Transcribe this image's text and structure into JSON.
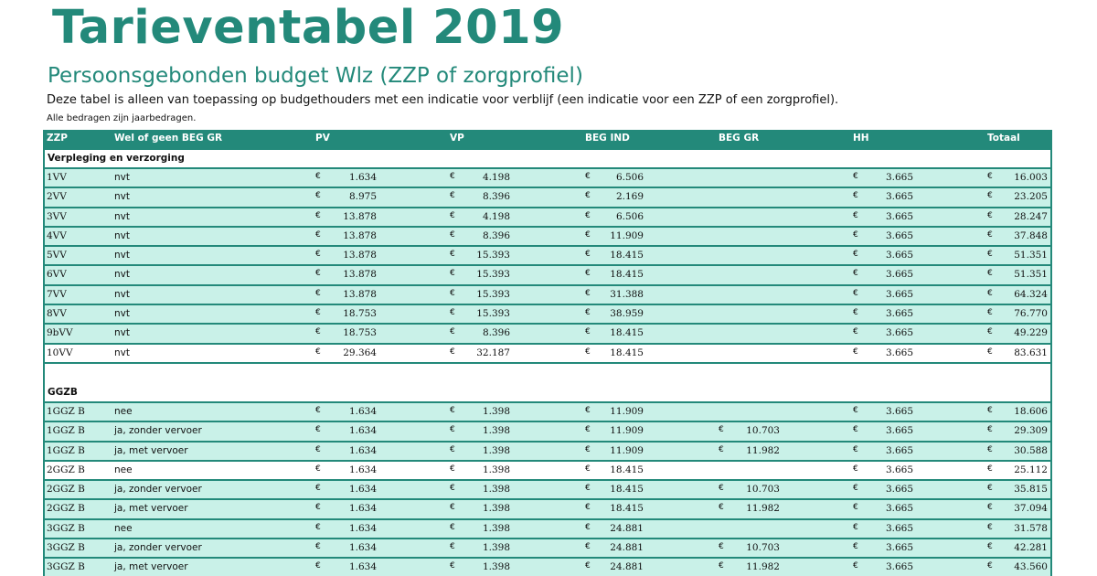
{
  "title": "Tarieventabel 2019",
  "subtitle": "Persoonsgebonden budget Wlz (ZZP of zorgprofiel)",
  "intro": "Deze tabel is alleen van toepassing op budgethouders met een indicatie voor verblijf (een indicatie voor een ZZP of een zorgprofiel).",
  "note": "Alle bedragen zijn jaarbedragen.",
  "currency_symbol": "€",
  "columns": {
    "zzp": "ZZP",
    "wel": "Wel of geen BEG GR",
    "pv": "PV",
    "vp": "VP",
    "beg_ind": "BEG IND",
    "beg_gr": "BEG GR",
    "hh": "HH",
    "totaal": "Totaal"
  },
  "sections": [
    {
      "title": "Verpleging en verzorging",
      "rows": [
        {
          "zzp": "1VV",
          "wel": "nvt",
          "pv": "1.634",
          "vp": "4.198",
          "beg_ind": "6.506",
          "beg_gr": "",
          "hh": "3.665",
          "totaal": "16.003"
        },
        {
          "zzp": "2VV",
          "wel": "nvt",
          "pv": "8.975",
          "vp": "8.396",
          "beg_ind": "2.169",
          "beg_gr": "",
          "hh": "3.665",
          "totaal": "23.205"
        },
        {
          "zzp": "3VV",
          "wel": "nvt",
          "pv": "13.878",
          "vp": "4.198",
          "beg_ind": "6.506",
          "beg_gr": "",
          "hh": "3.665",
          "totaal": "28.247"
        },
        {
          "zzp": "4VV",
          "wel": "nvt",
          "pv": "13.878",
          "vp": "8.396",
          "beg_ind": "11.909",
          "beg_gr": "",
          "hh": "3.665",
          "totaal": "37.848"
        },
        {
          "zzp": "5VV",
          "wel": "nvt",
          "pv": "13.878",
          "vp": "15.393",
          "beg_ind": "18.415",
          "beg_gr": "",
          "hh": "3.665",
          "totaal": "51.351"
        },
        {
          "zzp": "6VV",
          "wel": "nvt",
          "pv": "13.878",
          "vp": "15.393",
          "beg_ind": "18.415",
          "beg_gr": "",
          "hh": "3.665",
          "totaal": "51.351"
        },
        {
          "zzp": "7VV",
          "wel": "nvt",
          "pv": "13.878",
          "vp": "15.393",
          "beg_ind": "31.388",
          "beg_gr": "",
          "hh": "3.665",
          "totaal": "64.324"
        },
        {
          "zzp": "8VV",
          "wel": "nvt",
          "pv": "18.753",
          "vp": "15.393",
          "beg_ind": "38.959",
          "beg_gr": "",
          "hh": "3.665",
          "totaal": "76.770"
        },
        {
          "zzp": "9bVV",
          "wel": "nvt",
          "pv": "18.753",
          "vp": "8.396",
          "beg_ind": "18.415",
          "beg_gr": "",
          "hh": "3.665",
          "totaal": "49.229"
        },
        {
          "zzp": "10VV",
          "wel": "nvt",
          "pv": "29.364",
          "vp": "32.187",
          "beg_ind": "18.415",
          "beg_gr": "",
          "hh": "3.665",
          "totaal": "83.631"
        }
      ]
    },
    {
      "title": "GGZB",
      "rows": [
        {
          "zzp": "1GGZ B",
          "wel": "nee",
          "pv": "1.634",
          "vp": "1.398",
          "beg_ind": "11.909",
          "beg_gr": "",
          "hh": "3.665",
          "totaal": "18.606"
        },
        {
          "zzp": "1GGZ B",
          "wel": "ja, zonder vervoer",
          "pv": "1.634",
          "vp": "1.398",
          "beg_ind": "11.909",
          "beg_gr": "10.703",
          "hh": "3.665",
          "totaal": "29.309"
        },
        {
          "zzp": "1GGZ B",
          "wel": "ja, met vervoer",
          "pv": "1.634",
          "vp": "1.398",
          "beg_ind": "11.909",
          "beg_gr": "11.982",
          "hh": "3.665",
          "totaal": "30.588"
        },
        {
          "zzp": "2GGZ B",
          "wel": "nee",
          "pv": "1.634",
          "vp": "1.398",
          "beg_ind": "18.415",
          "beg_gr": "",
          "hh": "3.665",
          "totaal": "25.112"
        },
        {
          "zzp": "2GGZ B",
          "wel": "ja, zonder vervoer",
          "pv": "1.634",
          "vp": "1.398",
          "beg_ind": "18.415",
          "beg_gr": "10.703",
          "hh": "3.665",
          "totaal": "35.815"
        },
        {
          "zzp": "2GGZ B",
          "wel": "ja, met vervoer",
          "pv": "1.634",
          "vp": "1.398",
          "beg_ind": "18.415",
          "beg_gr": "11.982",
          "hh": "3.665",
          "totaal": "37.094"
        },
        {
          "zzp": "3GGZ B",
          "wel": "nee",
          "pv": "1.634",
          "vp": "1.398",
          "beg_ind": "24.881",
          "beg_gr": "",
          "hh": "3.665",
          "totaal": "31.578"
        },
        {
          "zzp": "3GGZ B",
          "wel": "ja, zonder vervoer",
          "pv": "1.634",
          "vp": "1.398",
          "beg_ind": "24.881",
          "beg_gr": "10.703",
          "hh": "3.665",
          "totaal": "42.281"
        },
        {
          "zzp": "3GGZ B",
          "wel": "ja, met vervoer",
          "pv": "1.634",
          "vp": "1.398",
          "beg_ind": "24.881",
          "beg_gr": "11.982",
          "hh": "3.665",
          "totaal": "43.560"
        }
      ]
    }
  ]
}
